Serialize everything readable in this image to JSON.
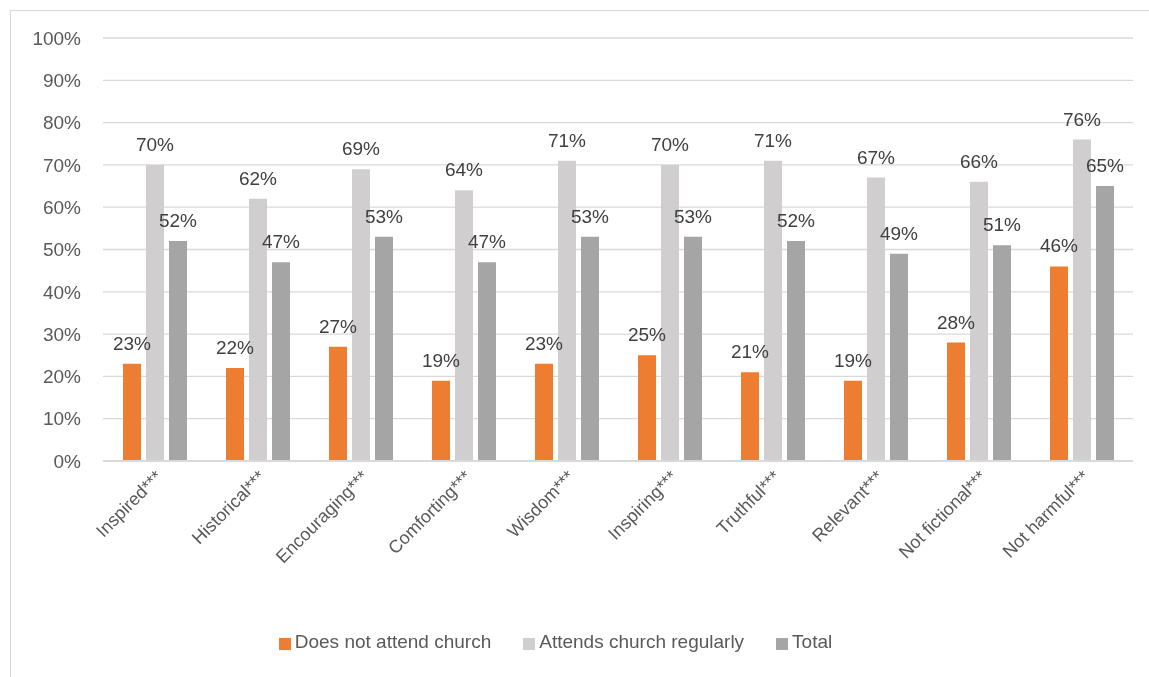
{
  "chart_data": {
    "type": "bar",
    "categories": [
      "Inspired***",
      "Historical***",
      "Encouraging***",
      "Comforting***",
      "Wisdom***",
      "Inspiring***",
      "Truthful***",
      "Relevant***",
      "Not fictional***",
      "Not harmful***"
    ],
    "series": [
      {
        "name": "Does not attend church",
        "color": "#ed7d31",
        "values": [
          23,
          22,
          27,
          19,
          23,
          25,
          21,
          19,
          28,
          46
        ],
        "value_labels": [
          "23%",
          "22%",
          "27%",
          "19%",
          "23%",
          "25%",
          "21%",
          "19%",
          "28%",
          "46%"
        ]
      },
      {
        "name": "Attends church regularly",
        "color": "#d0cece",
        "values": [
          70,
          62,
          69,
          64,
          71,
          70,
          71,
          67,
          66,
          76
        ],
        "value_labels": [
          "70%",
          "62%",
          "69%",
          "64%",
          "71%",
          "70%",
          "71%",
          "67%",
          "66%",
          "76%"
        ]
      },
      {
        "name": "Total",
        "color": "#a5a5a5",
        "values": [
          52,
          47,
          53,
          47,
          53,
          53,
          52,
          49,
          51,
          65
        ],
        "value_labels": [
          "52%",
          "47%",
          "53%",
          "47%",
          "53%",
          "53%",
          "52%",
          "49%",
          "51%",
          "65%"
        ]
      }
    ],
    "ylim": [
      0,
      100
    ],
    "yticks": [
      {
        "value": 0,
        "label": "0%"
      },
      {
        "value": 10,
        "label": "10%"
      },
      {
        "value": 20,
        "label": "20%"
      },
      {
        "value": 30,
        "label": "30%"
      },
      {
        "value": 40,
        "label": "40%"
      },
      {
        "value": 50,
        "label": "50%"
      },
      {
        "value": 60,
        "label": "60%"
      },
      {
        "value": 70,
        "label": "70%"
      },
      {
        "value": 80,
        "label": "80%"
      },
      {
        "value": 90,
        "label": "90%"
      },
      {
        "value": 100,
        "label": "100%"
      }
    ],
    "grid": "y",
    "legend": "bottom"
  }
}
